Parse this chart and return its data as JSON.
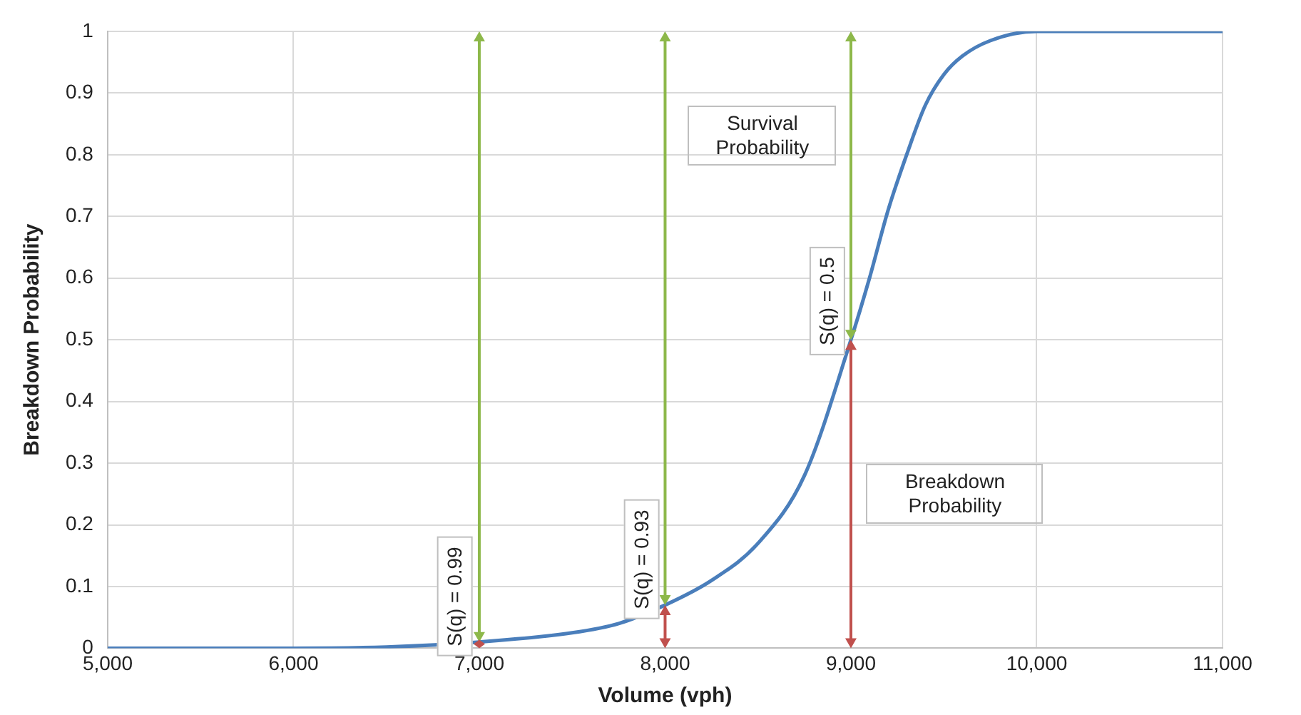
{
  "chart_data": {
    "type": "line",
    "xlabel": "Volume (vph)",
    "ylabel": "Breakdown Probability",
    "xlim": [
      5000,
      11000
    ],
    "xticks": [
      {
        "value": 5000,
        "label": "5,000"
      },
      {
        "value": 6000,
        "label": "6,000"
      },
      {
        "value": 7000,
        "label": "7,000"
      },
      {
        "value": 8000,
        "label": "8,000"
      },
      {
        "value": 9000,
        "label": "9,000"
      },
      {
        "value": 10000,
        "label": "10,000"
      },
      {
        "value": 11000,
        "label": "11,000"
      }
    ],
    "ylim": [
      0,
      1
    ],
    "yticks": [
      0,
      0.1,
      0.2,
      0.3,
      0.4,
      0.5,
      0.6,
      0.7,
      0.8,
      0.9,
      1
    ],
    "grid": true,
    "legend": false,
    "marker": "none",
    "line_style": "solid",
    "series": [
      {
        "color": "#4a7ebb",
        "x": [
          5000,
          6000,
          6500,
          7000,
          7500,
          7750,
          8000,
          8250,
          8500,
          8750,
          9000,
          9100,
          9200,
          9300,
          9400,
          9500,
          9600,
          9750,
          10000,
          11000
        ],
        "values": [
          0,
          0,
          0.002,
          0.01,
          0.025,
          0.04,
          0.07,
          0.11,
          0.17,
          0.28,
          0.5,
          0.6,
          0.71,
          0.8,
          0.88,
          0.93,
          0.96,
          0.985,
          1,
          1
        ]
      }
    ],
    "annotations": [
      {
        "text": "S(q) = 0.99",
        "x": 7000,
        "y": 0.01
      },
      {
        "text": "S(q) = 0.93",
        "x": 8000,
        "y": 0.07
      },
      {
        "text": "S(q) = 0.5",
        "x": 9000,
        "y": 0.5
      },
      "Survival Probability",
      "Breakdown Probability"
    ]
  }
}
